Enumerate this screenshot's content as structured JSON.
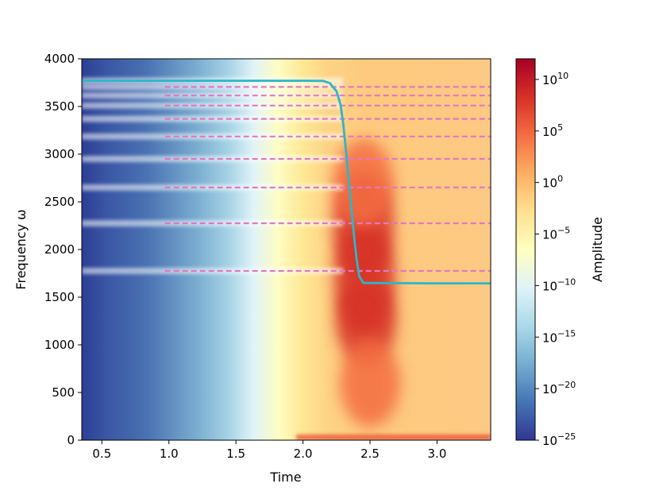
{
  "chart_data": {
    "type": "heatmap",
    "title": "",
    "xlabel": "Time",
    "ylabel": "Frequency ω",
    "xlim": [
      0.35,
      3.4
    ],
    "ylim": [
      0,
      4000
    ],
    "x_ticks": [
      0.5,
      1.0,
      1.5,
      2.0,
      2.5,
      3.0
    ],
    "x_tick_labels": [
      "0.5",
      "1.0",
      "1.5",
      "2.0",
      "2.5",
      "3.0"
    ],
    "y_ticks": [
      0,
      500,
      1000,
      1500,
      2000,
      2500,
      3000,
      3500,
      4000
    ],
    "y_tick_labels": [
      "0",
      "500",
      "1000",
      "1500",
      "2000",
      "2500",
      "3000",
      "3500",
      "4000"
    ],
    "colorbar": {
      "label": "Amplitude",
      "scale": "log",
      "colormap": "RdYlBu_r",
      "range_exponent": [
        -25,
        12
      ],
      "ticks": [
        {
          "base": "10",
          "exp": "10",
          "exponent": 10
        },
        {
          "base": "10",
          "exp": "5",
          "exponent": 5
        },
        {
          "base": "10",
          "exp": "0",
          "exponent": 0
        },
        {
          "base": "10",
          "exp": "−5",
          "exponent": -5
        },
        {
          "base": "10",
          "exp": "−10",
          "exponent": -10
        },
        {
          "base": "10",
          "exp": "−15",
          "exponent": -15
        },
        {
          "base": "10",
          "exp": "−20",
          "exponent": -20
        },
        {
          "base": "10",
          "exp": "−25",
          "exponent": -25
        }
      ]
    },
    "series": [
      {
        "style": "solid",
        "color": "#2ab7c9",
        "x": [
          0.35,
          1.0,
          1.5,
          2.0,
          2.15,
          2.2,
          2.25,
          2.28,
          2.3,
          2.32,
          2.34,
          2.36,
          2.38,
          2.4,
          2.42,
          2.45,
          2.5,
          3.0,
          3.4
        ],
        "y": [
          3770,
          3770,
          3770,
          3770,
          3768,
          3745,
          3660,
          3520,
          3320,
          3050,
          2750,
          2450,
          2150,
          1900,
          1720,
          1650,
          1648,
          1645,
          1645
        ]
      }
    ],
    "reference_lines": {
      "style": "dashed",
      "color": "#e377c2",
      "x_start": 0.97,
      "x_end": 3.4,
      "y": [
        3705,
        3615,
        3510,
        3370,
        3185,
        2950,
        2650,
        2275,
        1775
      ]
    },
    "heatmap_bands": {
      "frequencies": [
        3770,
        3705,
        3615,
        3510,
        3370,
        3185,
        2950,
        2650,
        2275,
        1775
      ],
      "time_range": [
        0.35,
        2.3
      ],
      "color": "#ffffff"
    },
    "heatmap_regions": [
      {
        "kind": "peak",
        "t": 2.46,
        "w": 1700,
        "amplitude_exponent": 10
      },
      {
        "kind": "peak",
        "t": 2.45,
        "w": 2250,
        "amplitude_exponent": 9
      },
      {
        "kind": "peak",
        "t": 2.47,
        "w": 1250,
        "amplitude_exponent": 7
      },
      {
        "kind": "peak",
        "t": 2.45,
        "w": 2700,
        "amplitude_exponent": 6
      },
      {
        "kind": "peak",
        "t": 2.5,
        "w": 600,
        "amplitude_exponent": 3
      }
    ]
  }
}
